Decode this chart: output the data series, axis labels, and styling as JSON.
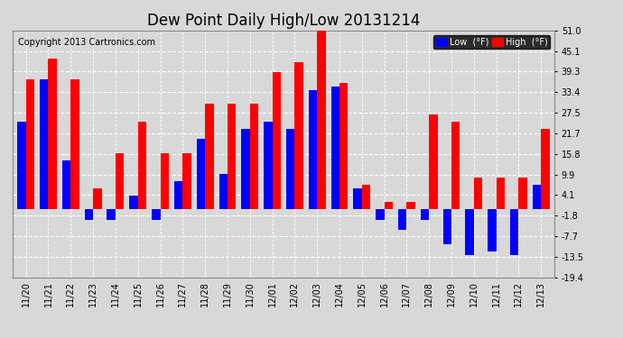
{
  "title": "Dew Point Daily High/Low 20131214",
  "copyright": "Copyright 2013 Cartronics.com",
  "dates": [
    "11/20",
    "11/21",
    "11/22",
    "11/23",
    "11/24",
    "11/25",
    "11/26",
    "11/27",
    "11/28",
    "11/29",
    "11/30",
    "12/01",
    "12/02",
    "12/03",
    "12/04",
    "12/05",
    "12/06",
    "12/07",
    "12/08",
    "12/09",
    "12/10",
    "12/11",
    "12/12",
    "12/13"
  ],
  "high": [
    37.0,
    43.0,
    37.0,
    6.0,
    16.0,
    25.0,
    16.0,
    16.0,
    30.0,
    30.0,
    30.0,
    39.0,
    42.0,
    52.0,
    36.0,
    7.0,
    2.0,
    2.0,
    27.0,
    25.0,
    9.0,
    9.0,
    9.0,
    23.0
  ],
  "low": [
    25.0,
    37.0,
    14.0,
    -3.0,
    -3.0,
    4.0,
    -3.0,
    8.0,
    20.0,
    10.0,
    23.0,
    25.0,
    23.0,
    34.0,
    35.0,
    6.0,
    -3.0,
    -6.0,
    -3.0,
    -10.0,
    -13.0,
    -12.0,
    -13.0,
    7.0
  ],
  "ylim": [
    -19.4,
    51.0
  ],
  "yticks": [
    -19.4,
    -13.5,
    -7.7,
    -1.8,
    4.1,
    9.9,
    15.8,
    21.7,
    27.5,
    33.4,
    39.3,
    45.1,
    51.0
  ],
  "high_color": "#ff0000",
  "low_color": "#0000ff",
  "bg_color": "#d8d8d8",
  "grid_color": "#ffffff",
  "bar_width": 0.38,
  "title_fontsize": 12,
  "tick_fontsize": 7,
  "copyright_fontsize": 7
}
